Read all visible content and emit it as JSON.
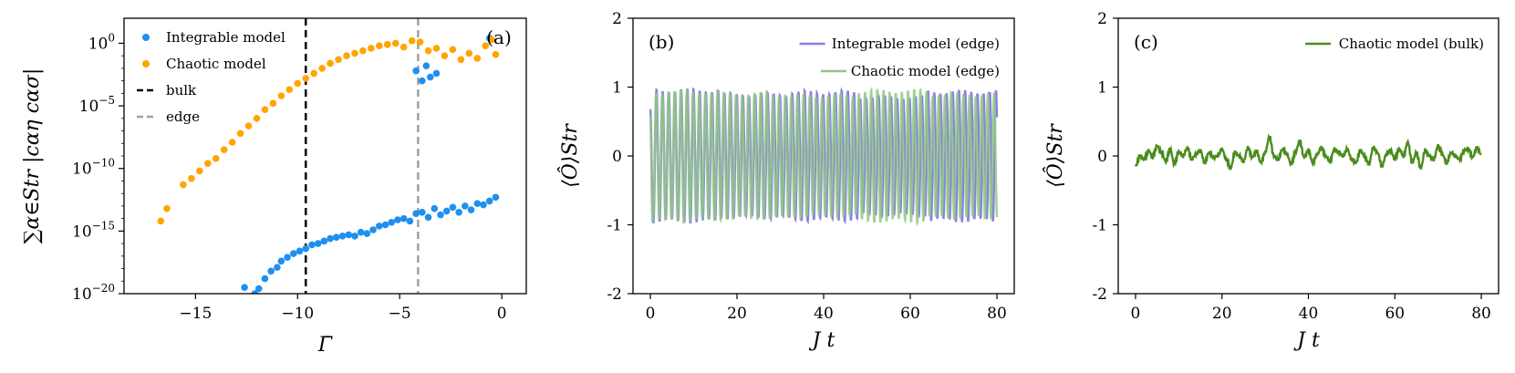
{
  "chart_data": [
    {
      "panel": "(a)",
      "type": "scatter",
      "xlabel": "Γ̄",
      "ylabel": "∑α∈Str |cαη cασ|",
      "xlim": [
        -18.5,
        1.2
      ],
      "ylim": [
        -20,
        2
      ],
      "yscale": "log",
      "xticks": [
        -15,
        -10,
        -5,
        0
      ],
      "xtick_labels": [
        "−15",
        "−10",
        "−5",
        "0"
      ],
      "yticks": [
        0,
        -5,
        -10,
        -15,
        -20
      ],
      "ytick_bases": [
        "10",
        "10",
        "10",
        "10",
        "10"
      ],
      "ytick_exps": [
        "0",
        "−5",
        "−10",
        "−15",
        "−20"
      ],
      "vlines": [
        {
          "name": "bulk",
          "x": -9.6,
          "color": "#000000",
          "style": "dashed"
        },
        {
          "name": "edge",
          "x": -4.1,
          "color": "#a0a0a0",
          "style": "dashed"
        }
      ],
      "series": [
        {
          "name": "Integrable model",
          "color": "#1f8ff0",
          "points": [
            [
              -12.6,
              -19.5
            ],
            [
              -12.1,
              -20.0
            ],
            [
              -11.9,
              -19.6
            ],
            [
              -11.6,
              -18.8
            ],
            [
              -11.3,
              -18.2
            ],
            [
              -11.0,
              -17.9
            ],
            [
              -10.8,
              -17.4
            ],
            [
              -10.5,
              -17.1
            ],
            [
              -10.2,
              -16.8
            ],
            [
              -9.9,
              -16.6
            ],
            [
              -9.6,
              -16.4
            ],
            [
              -9.3,
              -16.1
            ],
            [
              -9.0,
              -16.0
            ],
            [
              -8.7,
              -15.8
            ],
            [
              -8.4,
              -15.6
            ],
            [
              -8.1,
              -15.5
            ],
            [
              -7.8,
              -15.4
            ],
            [
              -7.5,
              -15.3
            ],
            [
              -7.2,
              -15.4
            ],
            [
              -6.9,
              -15.1
            ],
            [
              -6.6,
              -15.2
            ],
            [
              -6.3,
              -14.9
            ],
            [
              -6.0,
              -14.6
            ],
            [
              -5.7,
              -14.5
            ],
            [
              -5.4,
              -14.3
            ],
            [
              -5.1,
              -14.1
            ],
            [
              -4.8,
              -14.0
            ],
            [
              -4.5,
              -14.2
            ],
            [
              -4.2,
              -13.6
            ],
            [
              -3.9,
              -13.5
            ],
            [
              -3.6,
              -13.9
            ],
            [
              -3.3,
              -13.2
            ],
            [
              -3.0,
              -13.7
            ],
            [
              -2.7,
              -13.4
            ],
            [
              -2.4,
              -13.1
            ],
            [
              -2.1,
              -13.5
            ],
            [
              -1.8,
              -13.0
            ],
            [
              -1.5,
              -13.3
            ],
            [
              -1.2,
              -12.8
            ],
            [
              -0.9,
              -12.9
            ],
            [
              -0.6,
              -12.6
            ],
            [
              -0.3,
              -12.3
            ],
            [
              -4.2,
              -2.2
            ],
            [
              -3.9,
              -3.0
            ],
            [
              -3.7,
              -1.8
            ],
            [
              -3.5,
              -2.7
            ],
            [
              -3.2,
              -2.4
            ],
            [
              -0.6,
              0.4
            ]
          ]
        },
        {
          "name": "Chaotic model",
          "color": "#ffa500",
          "points": [
            [
              -16.7,
              -14.2
            ],
            [
              -16.4,
              -13.2
            ],
            [
              -15.6,
              -11.3
            ],
            [
              -15.2,
              -10.8
            ],
            [
              -14.8,
              -10.2
            ],
            [
              -14.4,
              -9.6
            ],
            [
              -14.0,
              -9.2
            ],
            [
              -13.6,
              -8.5
            ],
            [
              -13.2,
              -7.9
            ],
            [
              -12.8,
              -7.2
            ],
            [
              -12.4,
              -6.6
            ],
            [
              -12.0,
              -6.0
            ],
            [
              -11.6,
              -5.3
            ],
            [
              -11.2,
              -4.8
            ],
            [
              -10.8,
              -4.2
            ],
            [
              -10.4,
              -3.7
            ],
            [
              -10.0,
              -3.2
            ],
            [
              -9.6,
              -2.8
            ],
            [
              -9.2,
              -2.4
            ],
            [
              -8.8,
              -2.0
            ],
            [
              -8.4,
              -1.6
            ],
            [
              -8.0,
              -1.3
            ],
            [
              -7.6,
              -1.0
            ],
            [
              -7.2,
              -0.8
            ],
            [
              -6.8,
              -0.6
            ],
            [
              -6.4,
              -0.4
            ],
            [
              -6.0,
              -0.2
            ],
            [
              -5.6,
              -0.1
            ],
            [
              -5.2,
              0.0
            ],
            [
              -4.8,
              -0.3
            ],
            [
              -4.4,
              0.2
            ],
            [
              -4.0,
              0.1
            ],
            [
              -3.6,
              -0.6
            ],
            [
              -3.2,
              -0.4
            ],
            [
              -2.8,
              -1.0
            ],
            [
              -2.4,
              -0.5
            ],
            [
              -2.0,
              -1.3
            ],
            [
              -1.6,
              -0.8
            ],
            [
              -1.2,
              -1.2
            ],
            [
              -0.8,
              -0.2
            ],
            [
              -0.5,
              0.3
            ],
            [
              -0.3,
              -0.9
            ]
          ]
        }
      ],
      "legend": {
        "placement": "upper-left",
        "entries": [
          "Integrable model",
          "Chaotic model",
          "bulk",
          "edge"
        ]
      }
    },
    {
      "panel": "(b)",
      "type": "line",
      "xlabel": "J t",
      "ylabel": "⟨Ô⟩Str",
      "xlim": [
        -4,
        84
      ],
      "ylim": [
        -2,
        2
      ],
      "xticks": [
        0,
        20,
        40,
        60,
        80
      ],
      "yticks": [
        2,
        1,
        0,
        -1,
        -2
      ],
      "ytick_labels": [
        "2",
        "1",
        "0",
        "-1",
        "-2"
      ],
      "series": [
        {
          "name": "Integrable model (edge)",
          "color": "#8a7fe6",
          "omega": 4.41,
          "amp": [
            0.98,
            0.92,
            0.95,
            0.88,
            0.96
          ],
          "t_range": [
            0,
            80
          ]
        },
        {
          "name": "Chaotic model (edge)",
          "color": "#90c882",
          "omega": 4.43,
          "amp": [
            0.96,
            0.93,
            0.9,
            0.97,
            0.92
          ],
          "t_range": [
            0,
            80
          ]
        }
      ],
      "legend": {
        "placement": "top-right"
      }
    },
    {
      "panel": "(c)",
      "type": "line",
      "xlabel": "J t",
      "ylabel": "⟨Ô⟩Str",
      "xlim": [
        -4,
        84
      ],
      "ylim": [
        -2,
        2
      ],
      "xticks": [
        0,
        20,
        40,
        60,
        80
      ],
      "yticks": [
        2,
        1,
        0,
        -1,
        -2
      ],
      "ytick_labels": [
        "2",
        "1",
        "0",
        "-1",
        "-2"
      ],
      "series": [
        {
          "name": "Chaotic model (bulk)",
          "color": "#4a8c1c",
          "t": [
            0,
            1,
            2,
            3,
            4,
            5,
            6,
            7,
            8,
            9,
            10,
            11,
            12,
            13,
            14,
            15,
            16,
            17,
            18,
            19,
            20,
            21,
            22,
            23,
            24,
            25,
            26,
            27,
            28,
            29,
            30,
            31,
            32,
            33,
            34,
            35,
            36,
            37,
            38,
            39,
            40,
            41,
            42,
            43,
            44,
            45,
            46,
            47,
            48,
            49,
            50,
            51,
            52,
            53,
            54,
            55,
            56,
            57,
            58,
            59,
            60,
            61,
            62,
            63,
            64,
            65,
            66,
            67,
            68,
            69,
            70,
            71,
            72,
            73,
            74,
            75,
            76,
            77,
            78,
            79,
            80
          ],
          "y": [
            -0.15,
            0.0,
            -0.05,
            0.08,
            -0.02,
            0.15,
            0.05,
            -0.08,
            0.1,
            -0.12,
            0.06,
            0.0,
            0.12,
            -0.05,
            0.03,
            0.08,
            -0.1,
            0.05,
            -0.02,
            0.0,
            0.1,
            -0.05,
            -0.18,
            0.05,
            0.0,
            -0.08,
            0.12,
            -0.02,
            0.07,
            -0.1,
            0.05,
            0.28,
            0.0,
            -0.05,
            0.1,
            0.03,
            -0.12,
            0.05,
            0.22,
            -0.02,
            0.08,
            -0.1,
            0.02,
            0.12,
            0.0,
            -0.08,
            0.1,
            0.05,
            0.0,
            0.1,
            -0.05,
            -0.1,
            0.08,
            0.0,
            -0.12,
            0.12,
            0.05,
            -0.15,
            0.02,
            0.08,
            -0.05,
            0.1,
            0.0,
            0.2,
            -0.1,
            0.05,
            -0.18,
            0.08,
            0.0,
            -0.05,
            0.15,
            0.02,
            -0.1,
            0.05,
            0.0,
            -0.05,
            0.08,
            0.1,
            -0.02,
            0.12,
            0.02
          ]
        }
      ],
      "legend": {
        "placement": "top-right"
      }
    }
  ]
}
